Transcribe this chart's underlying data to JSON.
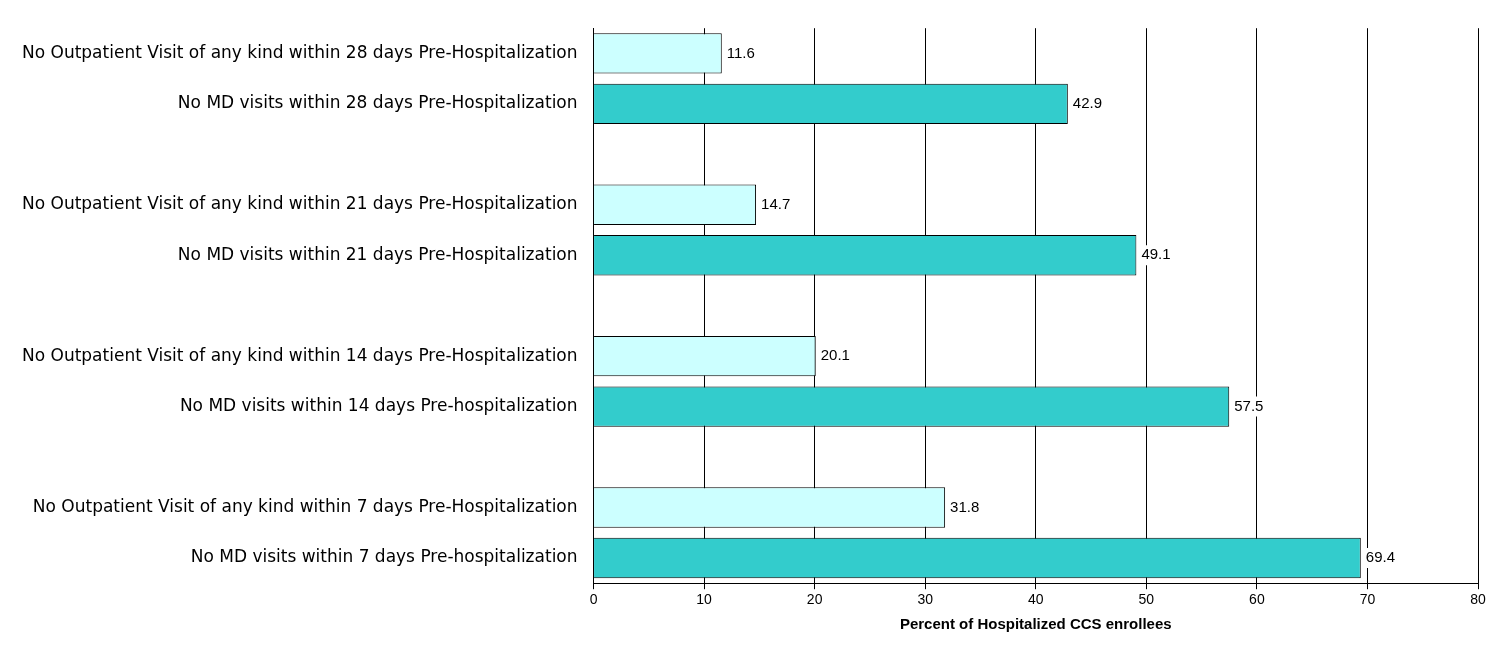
{
  "chart_data": {
    "type": "bar",
    "orientation": "horizontal",
    "xlabel": "Percent of Hospitalized CCS enrollees",
    "categories": [
      "No Outpatient Visit of any kind within 28 days Pre-Hospitalization",
      "No MD visits within 28 days Pre-Hospitalization",
      null,
      "No Outpatient Visit of any kind within 21 days Pre-Hospitalization",
      "No MD visits within 21 days Pre-Hospitalization",
      null,
      "No Outpatient Visit of any kind within 14 days Pre-Hospitalization",
      "No MD visits within 14 days Pre-hospitalization",
      null,
      "No Outpatient Visit of any kind within 7 days Pre-Hospitalization",
      "No MD visits within 7 days Pre-hospitalization"
    ],
    "values": [
      11.6,
      42.9,
      null,
      14.7,
      49.1,
      null,
      20.1,
      57.5,
      null,
      31.8,
      69.4
    ],
    "colors": [
      "#ccffff",
      "#33cccc",
      null,
      "#ccffff",
      "#33cccc",
      null,
      "#ccffff",
      "#33cccc",
      null,
      "#ccffff",
      "#33cccc"
    ],
    "xlim": [
      0,
      80
    ],
    "xticks": [
      0,
      10,
      20,
      30,
      40,
      50,
      60,
      70,
      80
    ],
    "grid": "x",
    "data_labels": true,
    "legend": false
  }
}
